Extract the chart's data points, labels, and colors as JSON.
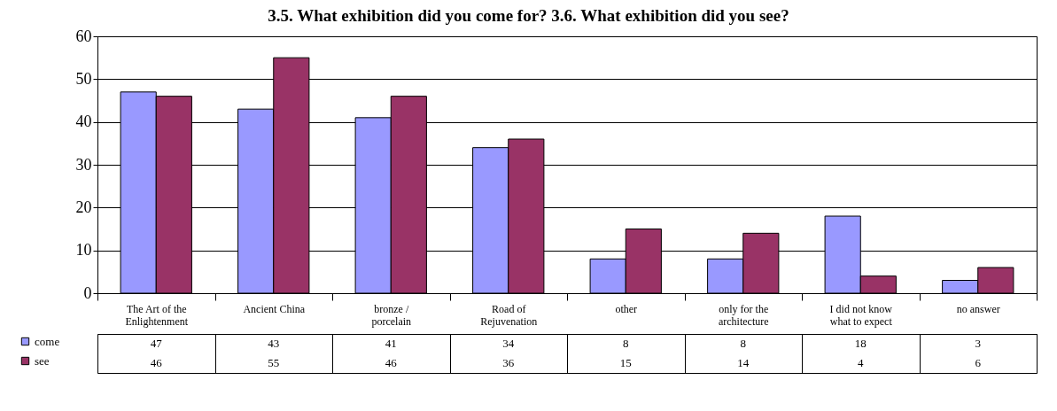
{
  "chart_data": {
    "type": "bar",
    "title": "3.5. What exhibition did you come for?  3.6. What exhibition did you see?",
    "categories": [
      "The Art of the Enlightenment",
      "Ancient China",
      "bronze / porcelain",
      "Road of Rejuvenation",
      "other",
      "only for the architecture",
      "I did not know what to expect",
      "no answer"
    ],
    "series": [
      {
        "name": "come",
        "color": "#9999ff",
        "values": [
          47,
          43,
          41,
          34,
          8,
          8,
          18,
          3
        ]
      },
      {
        "name": "see",
        "color": "#993366",
        "values": [
          46,
          55,
          46,
          36,
          15,
          14,
          4,
          6
        ]
      }
    ],
    "ylim": [
      0,
      60
    ],
    "yticks": [
      0,
      10,
      20,
      30,
      40,
      50,
      60
    ],
    "grid": "y",
    "legend": "bottom left",
    "data_labels": true
  }
}
